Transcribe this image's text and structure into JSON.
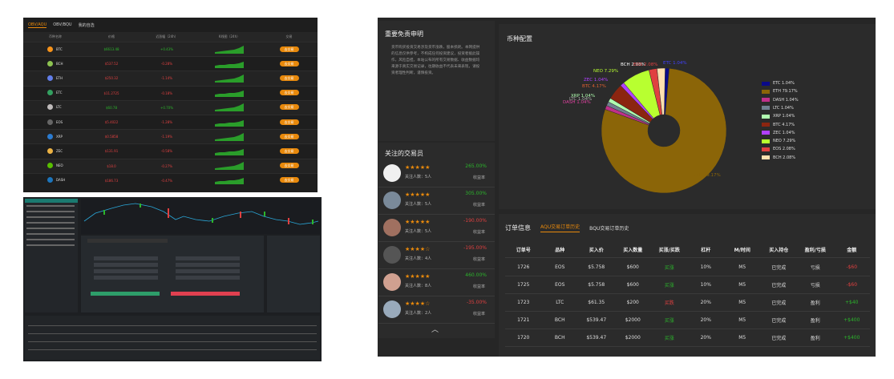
{
  "left_top": {
    "tabs": [
      "OBV/AQU",
      "OBV/BQU",
      "我的自选"
    ],
    "headers": [
      "币种名称",
      "价格",
      "近涨幅（24h）",
      "K线图（24h）",
      "交易"
    ],
    "trade_label": "去交易",
    "rows": [
      {
        "coin": "BTC",
        "price": "$6613.48",
        "change": "+0.43%",
        "up": true,
        "color": "#f7931a"
      },
      {
        "coin": "BCH",
        "price": "$537.52",
        "change": "-0.28%",
        "up": false,
        "color": "#8dc351"
      },
      {
        "coin": "ETH",
        "price": "$250.32",
        "change": "-1.14%",
        "up": false,
        "color": "#627eea"
      },
      {
        "coin": "ETC",
        "price": "$11.2725",
        "change": "-0.18%",
        "up": false,
        "color": "#33a060"
      },
      {
        "coin": "LTC",
        "price": "$60.78",
        "change": "+0.70%",
        "up": true,
        "color": "#bfbbbb"
      },
      {
        "coin": "EOS",
        "price": "$5.4022",
        "change": "-1.28%",
        "up": false,
        "color": "#666"
      },
      {
        "coin": "XRP",
        "price": "$0.5858",
        "change": "-1.19%",
        "up": false,
        "color": "#2b7bd0"
      },
      {
        "coin": "ZEC",
        "price": "$131.91",
        "change": "-0.58%",
        "up": false,
        "color": "#ecb244"
      },
      {
        "coin": "NEO",
        "price": "$18.0",
        "change": "-0.27%",
        "up": false,
        "color": "#58bf00"
      },
      {
        "coin": "DASH",
        "price": "$186.73",
        "change": "-0.47%",
        "up": false,
        "color": "#1c75bc"
      }
    ]
  },
  "disclaimer": {
    "title": "重要免责申明",
    "text": "货币购买投资交易涉及货币涨跌，股本损耗。本网提供的信息仅供参考，不构成任何投资建议，投资者据此操作，风险自担。本站公布的所有交易数据、收益数据均来源于真实交易记录，往期收益不代表未来表现，请投资者理性判断，谨慎投资。"
  },
  "traders": {
    "title": "关注的交易员",
    "followers_prefix": "关注人数：",
    "profit_label": "收益率",
    "list": [
      {
        "stars": "★★★★★",
        "followers": "5人",
        "pct": "265.00%",
        "up": true,
        "av": "#f0f0f0"
      },
      {
        "stars": "★★★★★",
        "followers": "5人",
        "pct": "305.00%",
        "up": true,
        "av": "#7a8a9a"
      },
      {
        "stars": "★★★★★",
        "followers": "5人",
        "pct": "-190.00%",
        "up": false,
        "av": "#a07060"
      },
      {
        "stars": "★★★★☆",
        "followers": "4人",
        "pct": "-195.00%",
        "up": false,
        "av": "#555"
      },
      {
        "stars": "★★★★★",
        "followers": "8人",
        "pct": "460.00%",
        "up": true,
        "av": "#d0a090"
      },
      {
        "stars": "★★★★☆",
        "followers": "2人",
        "pct": "-35.00%",
        "up": false,
        "av": "#9ab"
      }
    ]
  },
  "pie": {
    "title": "币种配置",
    "chart_data": {
      "type": "pie",
      "slices": [
        {
          "name": "ETC",
          "value": 1.04,
          "color": "#0a0a8a"
        },
        {
          "name": "ETH",
          "value": 79.17,
          "color": "#8b6508"
        },
        {
          "name": "DASH",
          "value": 1.04,
          "color": "#c0308a"
        },
        {
          "name": "LTC",
          "value": 1.04,
          "color": "#708090"
        },
        {
          "name": "XRP",
          "value": 1.04,
          "color": "#b0ffb0"
        },
        {
          "name": "BTC",
          "value": 4.17,
          "color": "#8b2510"
        },
        {
          "name": "ZEC",
          "value": 1.04,
          "color": "#b040ff"
        },
        {
          "name": "NEO",
          "value": 7.29,
          "color": "#b8ff30"
        },
        {
          "name": "EOS",
          "value": 2.08,
          "color": "#e04040"
        },
        {
          "name": "BCH",
          "value": 2.08,
          "color": "#ffe0b0"
        }
      ]
    },
    "legend": [
      "ETC 1.04%",
      "ETH 79.17%",
      "DASH 1.04%",
      "LTC 1.04%",
      "XRP 1.04%",
      "BTC 4.17%",
      "ZEC 1.04%",
      "NEO 7.29%",
      "EOS 2.08%",
      "BCH 2.08%"
    ],
    "callouts": [
      "BCH 2.08%",
      "EOS 2.08%",
      "ETC 1.04%",
      "NEO 7.29%",
      "ZEC 1.04%",
      "BTC 4.17%",
      "XRP 1.04%",
      "LTC 1.04%",
      "DASH 1.04%",
      "ETH 79.17%"
    ]
  },
  "orders": {
    "title": "订单信息",
    "tab_active": "AQU交易订单历史",
    "tab_other": "BQU交易订单历史",
    "headers": [
      "订单号",
      "品种",
      "买入价",
      "买入数量",
      "买涨/买跌",
      "杠杆",
      "M/时间",
      "买入持仓",
      "盈利/亏损",
      "金额"
    ],
    "rows": [
      [
        "1726",
        "EOS",
        "$5.758",
        "$600",
        "买涨",
        "10%",
        "M5",
        "已完成",
        "亏损",
        "-$60"
      ],
      [
        "1725",
        "EOS",
        "$5.758",
        "$600",
        "买涨",
        "10%",
        "M5",
        "已完成",
        "亏损",
        "-$60"
      ],
      [
        "1723",
        "LTC",
        "$61.35",
        "$200",
        "买跌",
        "20%",
        "M5",
        "已完成",
        "盈利",
        "+$40"
      ],
      [
        "1721",
        "BCH",
        "$539.47",
        "$2000",
        "买涨",
        "20%",
        "M5",
        "已完成",
        "盈利",
        "+$400"
      ],
      [
        "1720",
        "BCH",
        "$539.47",
        "$2000",
        "买涨",
        "20%",
        "M5",
        "已完成",
        "盈利",
        "+$400"
      ]
    ]
  }
}
